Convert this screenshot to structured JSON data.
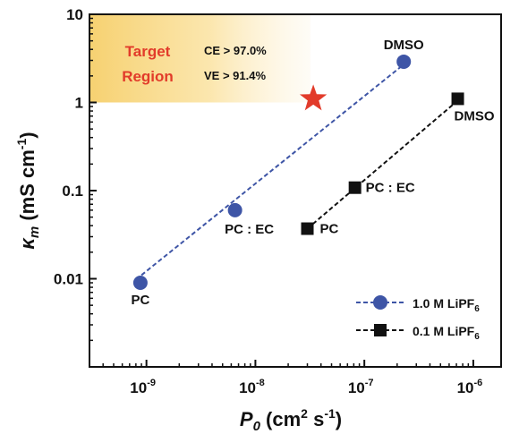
{
  "chart_data": {
    "type": "scatter",
    "x_axis": {
      "scale": "log",
      "range": [
        3e-10,
        1.8e-06
      ],
      "ticks": [
        1e-09,
        1e-08,
        1e-07,
        1e-06
      ],
      "tick_labels": [
        {
          "base": "10",
          "exp": "-9"
        },
        {
          "base": "10",
          "exp": "-8"
        },
        {
          "base": "10",
          "exp": "-7"
        },
        {
          "base": "10",
          "exp": "-6"
        }
      ],
      "label_main": "P",
      "label_sub": "0",
      "label_unit_a": " (cm",
      "label_unit_sup": "2",
      "label_unit_b": " s",
      "label_unit_sup2": "-1",
      "label_unit_c": ")"
    },
    "y_axis": {
      "scale": "log",
      "range": [
        0.001,
        10
      ],
      "ticks": [
        0.01,
        0.1,
        1,
        10
      ],
      "tick_labels": [
        "0.01",
        "0.1",
        "1",
        "10"
      ],
      "label_main": "κ",
      "label_sub": "m",
      "label_unit_a": " (mS cm",
      "label_unit_sup": "-1",
      "label_unit_b": ")"
    },
    "series": [
      {
        "name": "1.0 M LiPF",
        "name_sub": "6",
        "marker": "circle",
        "color": "#3e55a6",
        "fit_line": {
          "x": [
            9e-10,
            2.3e-07
          ],
          "y": [
            0.011,
            2.7
          ]
        },
        "points": [
          {
            "x": 8.8e-10,
            "y": 0.009,
            "label": "PC"
          },
          {
            "x": 6.5e-09,
            "y": 0.06,
            "label": "PC : EC"
          },
          {
            "x": 2.3e-07,
            "y": 2.9,
            "label": "DMSO"
          }
        ]
      },
      {
        "name": "0.1 M LiPF",
        "name_sub": "6",
        "marker": "square",
        "color": "#111111",
        "fit_line": {
          "x": [
            3e-08,
            7.2e-07
          ],
          "y": [
            0.037,
            1.05
          ]
        },
        "points": [
          {
            "x": 3e-08,
            "y": 0.037,
            "label": "PC"
          },
          {
            "x": 8.2e-08,
            "y": 0.108,
            "label": "PC : EC"
          },
          {
            "x": 7.2e-07,
            "y": 1.1,
            "label": "DMSO"
          }
        ]
      }
    ],
    "target": {
      "title_line1": "Target",
      "title_line2": "Region",
      "ce": "CE > 97.0%",
      "ve": "VE > 91.4%",
      "region_x": [
        3e-10,
        3.2e-08
      ],
      "region_y": [
        1.0,
        10
      ],
      "star": {
        "x": 3.4e-08,
        "y": 1.1
      },
      "color": "#e23b2a",
      "fill": "#f9d97a"
    },
    "legend_position": "bottom-right",
    "grid": false
  }
}
